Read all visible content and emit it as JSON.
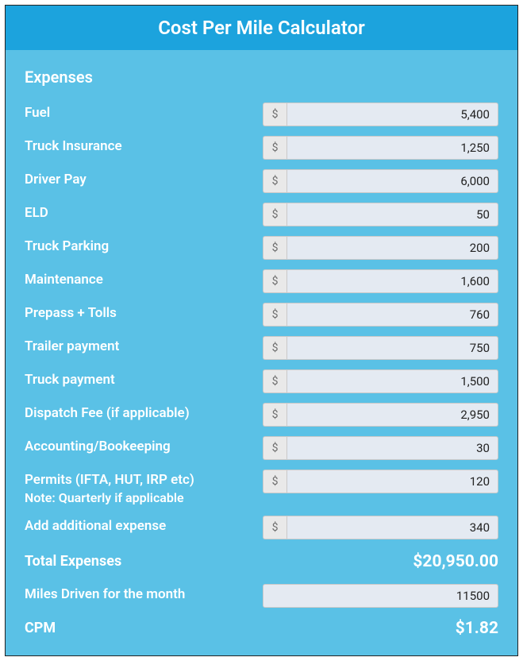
{
  "header": {
    "title": "Cost Per Mile Calculator"
  },
  "section_title": "Expenses",
  "currency_prefix": "$",
  "expenses": [
    {
      "label": "Fuel",
      "value": "5,400"
    },
    {
      "label": "Truck Insurance",
      "value": "1,250"
    },
    {
      "label": "Driver Pay",
      "value": "6,000"
    },
    {
      "label": "ELD",
      "value": "50"
    },
    {
      "label": "Truck Parking",
      "value": "200"
    },
    {
      "label": "Maintenance",
      "value": "1,600"
    },
    {
      "label": "Prepass + Tolls",
      "value": "760"
    },
    {
      "label": "Trailer payment",
      "value": "750"
    },
    {
      "label": "Truck payment",
      "value": "1,500"
    },
    {
      "label": "Dispatch Fee (if applicable)",
      "value": "2,950"
    },
    {
      "label": "Accounting/Bookeeping",
      "value": "30"
    },
    {
      "label": "Permits (IFTA, HUT, IRP etc)",
      "note": "Note: Quarterly if applicable",
      "value": "120"
    },
    {
      "label": "Add additional expense",
      "value": "340"
    }
  ],
  "total": {
    "label": "Total Expenses",
    "value": "$20,950.00"
  },
  "miles": {
    "label": "Miles Driven for the month",
    "value": "11500"
  },
  "cpm": {
    "label": "CPM",
    "value": "$1.82"
  },
  "colors": {
    "panel_bg": "#5ac1e6",
    "header_bg": "#1ca3dd",
    "text": "#ffffff",
    "input_bg": "#e4eaf2",
    "prefix_bg": "#e9e9e9",
    "border": "#c9c9c9"
  }
}
